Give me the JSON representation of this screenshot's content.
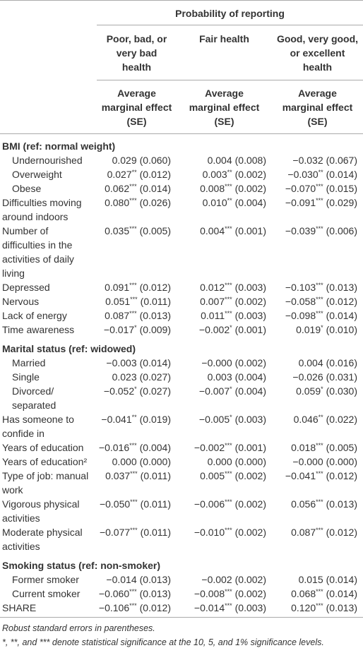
{
  "header": {
    "title": "Probability of reporting",
    "columns": [
      {
        "title": [
          "Poor, bad, or",
          "very bad",
          "health"
        ],
        "subtitle": [
          "Average",
          "marginal effect",
          "(SE)"
        ]
      },
      {
        "title": [
          "Fair health"
        ],
        "subtitle": [
          "Average",
          "marginal effect",
          "(SE)"
        ]
      },
      {
        "title": [
          "Good, very good,",
          "or excellent",
          "health"
        ],
        "subtitle": [
          "Average",
          "marginal effect",
          "(SE)"
        ]
      }
    ]
  },
  "body": [
    {
      "heading": "BMI (ref: normal weight)",
      "rows": [
        {
          "label": "Undernourished",
          "cells": [
            {
              "est": "0.029",
              "se": "(0.060)"
            },
            {
              "est": "0.004",
              "se": "(0.008)"
            },
            {
              "est": "−0.032",
              "se": "(0.067)"
            }
          ]
        },
        {
          "label": "Overweight",
          "cells": [
            {
              "est": "0.027",
              "stars": "**",
              "se": "(0.012)"
            },
            {
              "est": "0.003",
              "stars": "**",
              "se": "(0.002)"
            },
            {
              "est": "−0.030",
              "stars": "**",
              "se": "(0.014)"
            }
          ]
        },
        {
          "label": "Obese",
          "cells": [
            {
              "est": "0.062",
              "stars": "***",
              "se": "(0.014)"
            },
            {
              "est": "0.008",
              "stars": "***",
              "se": "(0.002)"
            },
            {
              "est": "−0.070",
              "stars": "***",
              "se": "(0.015)"
            }
          ]
        }
      ]
    },
    {
      "label": [
        "Difficulties moving",
        "around indoors"
      ],
      "cells": [
        {
          "est": "0.080",
          "stars": "***",
          "se": "(0.026)"
        },
        {
          "est": "0.010",
          "stars": "**",
          "se": "(0.004)"
        },
        {
          "est": "−0.091",
          "stars": "***",
          "se": "(0.029)"
        }
      ]
    },
    {
      "label": [
        "Number of",
        "difficulties in the",
        "activities of daily",
        "living"
      ],
      "cells": [
        {
          "est": "0.035",
          "stars": "***",
          "se": "(0.005)"
        },
        {
          "est": "0.004",
          "stars": "***",
          "se": "(0.001)"
        },
        {
          "est": "−0.039",
          "stars": "***",
          "se": "(0.006)"
        }
      ]
    },
    {
      "label": "Depressed",
      "cells": [
        {
          "est": "0.091",
          "stars": "***",
          "se": "(0.012)"
        },
        {
          "est": "0.012",
          "stars": "***",
          "se": "(0.003)"
        },
        {
          "est": "−0.103",
          "stars": "***",
          "se": "(0.013)"
        }
      ]
    },
    {
      "label": "Nervous",
      "cells": [
        {
          "est": "0.051",
          "stars": "***",
          "se": "(0.011)"
        },
        {
          "est": "0.007",
          "stars": "***",
          "se": "(0.002)"
        },
        {
          "est": "−0.058",
          "stars": "***",
          "se": "(0.012)"
        }
      ]
    },
    {
      "label": "Lack of energy",
      "cells": [
        {
          "est": "0.087",
          "stars": "***",
          "se": "(0.013)"
        },
        {
          "est": "0.011",
          "stars": "***",
          "se": "(0.003)"
        },
        {
          "est": "−0.098",
          "stars": "***",
          "se": "(0.014)"
        }
      ]
    },
    {
      "label": "Time awareness",
      "cells": [
        {
          "est": "−0.017",
          "stars": "*",
          "se": "(0.009)"
        },
        {
          "est": "−0.002",
          "stars": "*",
          "se": "(0.001)"
        },
        {
          "est": "0.019",
          "stars": "*",
          "se": "(0.010)"
        }
      ]
    },
    {
      "heading": "Marital status (ref: widowed)",
      "rows": [
        {
          "label": "Married",
          "cells": [
            {
              "est": "−0.003",
              "se": "(0.014)"
            },
            {
              "est": "−0.000",
              "se": "(0.002)"
            },
            {
              "est": "0.004",
              "se": "(0.016)"
            }
          ]
        },
        {
          "label": "Single",
          "cells": [
            {
              "est": "0.023",
              "se": "(0.027)"
            },
            {
              "est": "0.003",
              "se": "(0.004)"
            },
            {
              "est": "−0.026",
              "se": "(0.031)"
            }
          ]
        },
        {
          "label": [
            "Divorced/",
            "separated"
          ],
          "cells": [
            {
              "est": "−0.052",
              "stars": "*",
              "se": "(0.027)"
            },
            {
              "est": "−0.007",
              "stars": "*",
              "se": "(0.004)"
            },
            {
              "est": "0.059",
              "stars": "*",
              "se": "(0.030)"
            }
          ]
        }
      ]
    },
    {
      "label": [
        "Has someone to",
        "confide in"
      ],
      "cells": [
        {
          "est": "−0.041",
          "stars": "**",
          "se": "(0.019)"
        },
        {
          "est": "−0.005",
          "stars": "*",
          "se": "(0.003)"
        },
        {
          "est": "0.046",
          "stars": "**",
          "se": "(0.022)"
        }
      ]
    },
    {
      "label": "Years of education",
      "cells": [
        {
          "est": "−0.016",
          "stars": "***",
          "se": "(0.004)"
        },
        {
          "est": "−0.002",
          "stars": "***",
          "se": "(0.001)"
        },
        {
          "est": "0.018",
          "stars": "***",
          "se": "(0.005)"
        }
      ]
    },
    {
      "label": "Years of education²",
      "cells": [
        {
          "est": "0.000",
          "se": "(0.000)"
        },
        {
          "est": "0.000",
          "se": "(0.000)"
        },
        {
          "est": "−0.000",
          "se": "(0.000)"
        }
      ]
    },
    {
      "label": [
        "Type of job: manual",
        "work"
      ],
      "cells": [
        {
          "est": "0.037",
          "stars": "***",
          "se": "(0.011)"
        },
        {
          "est": "0.005",
          "stars": "***",
          "se": "(0.002)"
        },
        {
          "est": "−0.041",
          "stars": "***",
          "se": "(0.012)"
        }
      ]
    },
    {
      "label": [
        "Vigorous physical",
        "activities"
      ],
      "cells": [
        {
          "est": "−0.050",
          "stars": "***",
          "se": "(0.011)"
        },
        {
          "est": "−0.006",
          "stars": "***",
          "se": "(0.002)"
        },
        {
          "est": "0.056",
          "stars": "***",
          "se": "(0.013)"
        }
      ]
    },
    {
      "label": [
        "Moderate physical",
        "activities"
      ],
      "cells": [
        {
          "est": "−0.077",
          "stars": "***",
          "se": "(0.011)"
        },
        {
          "est": "−0.010",
          "stars": "***",
          "se": "(0.002)"
        },
        {
          "est": "0.087",
          "stars": "***",
          "se": "(0.012)"
        }
      ]
    },
    {
      "heading": "Smoking status (ref: non-smoker)",
      "rows": [
        {
          "label": "Former smoker",
          "cells": [
            {
              "est": "−0.014",
              "se": "(0.013)"
            },
            {
              "est": "−0.002",
              "se": "(0.002)"
            },
            {
              "est": "0.015",
              "se": "(0.014)"
            }
          ]
        },
        {
          "label": "Current smoker",
          "cells": [
            {
              "est": "−0.060",
              "stars": "***",
              "se": "(0.013)"
            },
            {
              "est": "−0.008",
              "stars": "***",
              "se": "(0.002)"
            },
            {
              "est": "0.068",
              "stars": "***",
              "se": "(0.014)"
            }
          ]
        }
      ]
    },
    {
      "label": "SHARE",
      "cells": [
        {
          "est": "−0.106",
          "stars": "***",
          "se": "(0.012)"
        },
        {
          "est": "−0.014",
          "stars": "***",
          "se": "(0.003)"
        },
        {
          "est": "0.120",
          "stars": "***",
          "se": "(0.013)"
        }
      ]
    }
  ],
  "footnotes": [
    "Robust standard errors in parentheses.",
    "*, **, and *** denote statistical significance at the 10, 5, and 1% significance levels."
  ]
}
